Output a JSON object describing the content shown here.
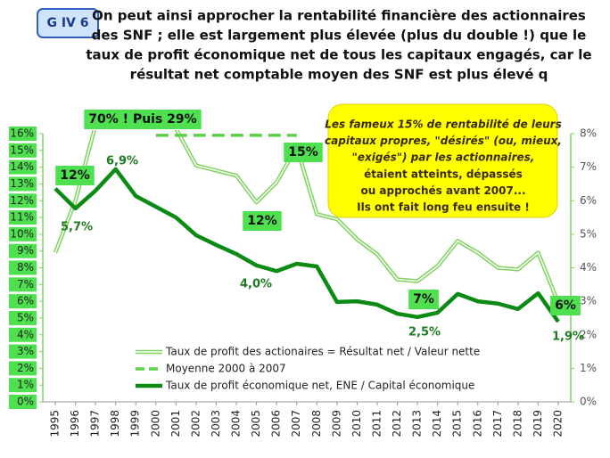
{
  "chart_data": {
    "type": "line",
    "badge": "G IV 6",
    "title": [
      "On peut ainsi approcher la rentabilité financière des actionnaires",
      "des SNF ; elle est largement plus élevée (plus du double !) que le",
      "taux de profit économique net de tous les capitaux engagés, car  le",
      "résultat net comptable moyen des SNF est plus élevé q"
    ],
    "categories": [
      "1995",
      "1996",
      "1997",
      "1998",
      "1999",
      "2000",
      "2001",
      "2002",
      "2003",
      "2004",
      "2005",
      "2006",
      "2007",
      "2008",
      "2009",
      "2010",
      "2011",
      "2012",
      "2013",
      "2014",
      "2015",
      "2016",
      "2017",
      "2018",
      "2019",
      "2020"
    ],
    "series": [
      {
        "name": "Taux de profit des actionaires = Résultat net / Valeur nette",
        "color": "#7fd35f",
        "style": "double",
        "values": [
          8.9,
          12,
          16.5,
          null,
          null,
          null,
          16.3,
          14.1,
          13.8,
          13.5,
          11.9,
          13.1,
          15.2,
          11.2,
          10.9,
          9.7,
          8.8,
          7.3,
          7.2,
          8.1,
          9.6,
          8.9,
          8.0,
          7.9,
          8.9,
          5.9
        ]
      },
      {
        "name": "Moyenne 2000 à 2007",
        "color": "#5fcf4a",
        "style": "dashed",
        "values": [
          null,
          null,
          null,
          null,
          null,
          15.9,
          15.9,
          15.9,
          15.9,
          15.9,
          15.9,
          15.9,
          15.9,
          null,
          null,
          null,
          null,
          null,
          null,
          null,
          null,
          null,
          null,
          null,
          null,
          null
        ]
      },
      {
        "name": "Taux de profit économique net, ENE / Capital économique",
        "color": "#0b8a14",
        "style": "solid",
        "axis": "y2",
        "values": [
          6.36,
          5.77,
          6.3,
          6.94,
          6.14,
          5.82,
          5.5,
          4.97,
          4.68,
          4.41,
          4.07,
          3.9,
          4.12,
          4.04,
          2.98,
          3.0,
          2.9,
          2.63,
          2.53,
          2.66,
          3.22,
          3.0,
          2.93,
          2.77,
          3.24,
          2.39
        ]
      }
    ],
    "ylim": [
      0,
      16
    ],
    "yticks": [
      {
        "value": 0,
        "label": "0%"
      },
      {
        "value": 1,
        "label": "1%"
      },
      {
        "value": 2,
        "label": "2%"
      },
      {
        "value": 3,
        "label": "3%"
      },
      {
        "value": 4,
        "label": "4%"
      },
      {
        "value": 5,
        "label": "5%"
      },
      {
        "value": 6,
        "label": "6%"
      },
      {
        "value": 7,
        "label": "7%"
      },
      {
        "value": 8,
        "label": "8%"
      },
      {
        "value": 9,
        "label": "9%"
      },
      {
        "value": 10,
        "label": "10%"
      },
      {
        "value": 11,
        "label": "11%"
      },
      {
        "value": 12,
        "label": "12%"
      },
      {
        "value": 13,
        "label": "13%"
      },
      {
        "value": 14,
        "label": "14%"
      },
      {
        "value": 15,
        "label": "15%"
      },
      {
        "value": 16,
        "label": "16%"
      }
    ],
    "y2lim": [
      0,
      8
    ],
    "y2ticks": [
      {
        "value": 0,
        "label": "0%"
      },
      {
        "value": 1,
        "label": "1%"
      },
      {
        "value": 2,
        "label": "2%"
      },
      {
        "value": 3,
        "label": "3%"
      },
      {
        "value": 4,
        "label": "4%"
      },
      {
        "value": 5,
        "label": "5%"
      },
      {
        "value": 6,
        "label": "6%"
      },
      {
        "value": 7,
        "label": "7%"
      },
      {
        "value": 8,
        "label": "8%"
      }
    ],
    "annotations": [
      "12%",
      "5,7%",
      "70% ! Puis 29%",
      "6,9%",
      "15%",
      "12%",
      "4,0%",
      "7%",
      "2,5%",
      "6%",
      "1,9%"
    ],
    "callout": [
      "Les fameux 15% de rentabilité de leurs",
      "capitaux propres, \"désirés\" (ou, mieux,",
      "\"exigés\") par les actionnaires,",
      "étaient atteints, dépassés",
      "ou approchés avant 2007...",
      "Ils ont fait long feu ensuite !"
    ]
  }
}
